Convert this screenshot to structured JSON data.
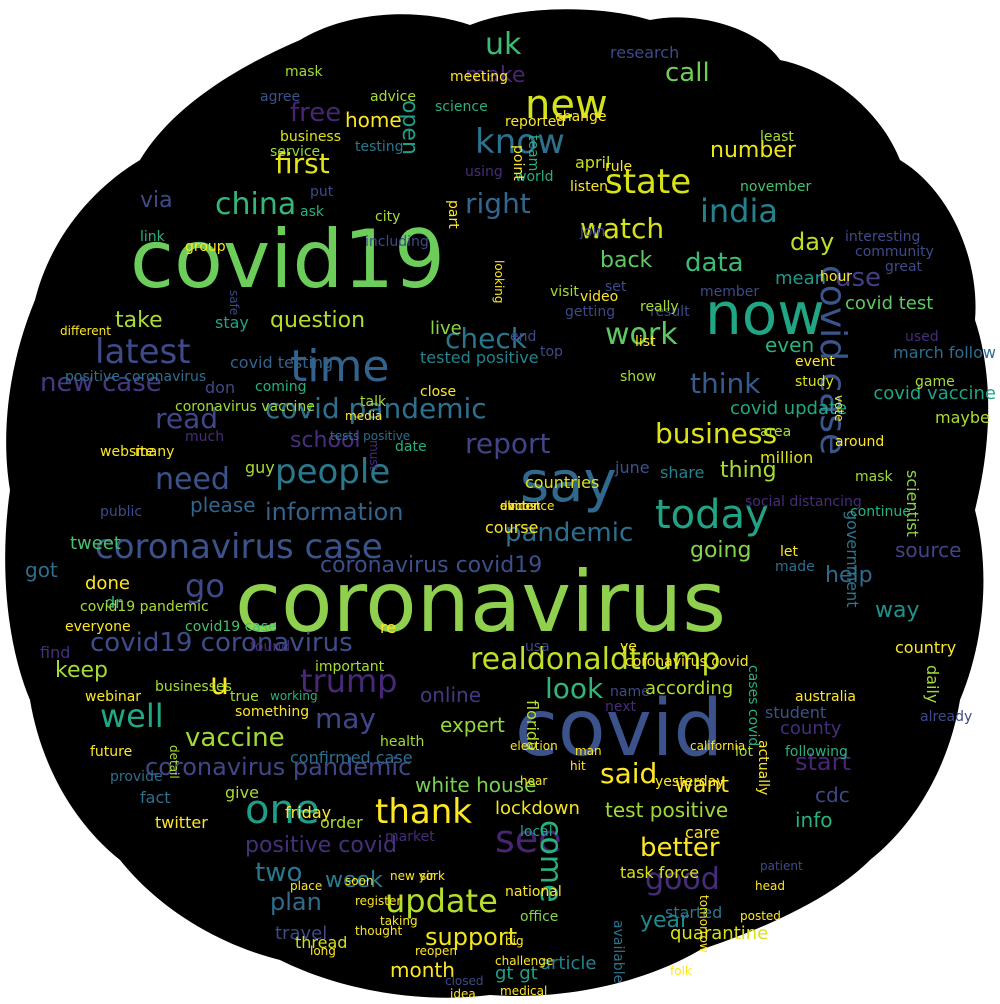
{
  "words": [
    {
      "text": "coronavirus",
      "color": "#8fd14f"
    },
    {
      "text": "covid19",
      "color": "#6ccd5a"
    },
    {
      "text": "covid",
      "color": "#3b528b"
    },
    {
      "text": "say",
      "color": "#31688e"
    },
    {
      "text": "now",
      "color": "#21a685"
    },
    {
      "text": "time",
      "color": "#33638d"
    },
    {
      "text": "new",
      "color": "#d2e21b"
    },
    {
      "text": "realdonaldtrump",
      "color": "#c2df23"
    },
    {
      "text": "people",
      "color": "#2a788e"
    },
    {
      "text": "one",
      "color": "#1f9e89"
    },
    {
      "text": "today",
      "color": "#20a386"
    },
    {
      "text": "covid case",
      "color": "#39558c"
    },
    {
      "text": "coronavirus case",
      "color": "#3b528b"
    },
    {
      "text": "update",
      "color": "#b5de2b"
    },
    {
      "text": "see",
      "color": "#482475"
    },
    {
      "text": "thank",
      "color": "#fde725"
    },
    {
      "text": "pandemic",
      "color": "#2e6f8e"
    },
    {
      "text": "latest",
      "color": "#3e4a89"
    },
    {
      "text": "covid pandemic",
      "color": "#2d708e"
    },
    {
      "text": "know",
      "color": "#2c728e"
    },
    {
      "text": "trump",
      "color": "#482878"
    },
    {
      "text": "state",
      "color": "#d8e219"
    },
    {
      "text": "india",
      "color": "#26818e"
    },
    {
      "text": "china",
      "color": "#35b779"
    },
    {
      "text": "need",
      "color": "#3b528b"
    },
    {
      "text": "good",
      "color": "#472c7a"
    },
    {
      "text": "read",
      "color": "#3f4788"
    },
    {
      "text": "business",
      "color": "#dde318"
    },
    {
      "text": "data",
      "color": "#3bbb75"
    },
    {
      "text": "look",
      "color": "#31b57b"
    },
    {
      "text": "well",
      "color": "#22a884"
    },
    {
      "text": "go",
      "color": "#3e4989"
    },
    {
      "text": "u",
      "color": "#fde725"
    },
    {
      "text": "may",
      "color": "#3f4889"
    },
    {
      "text": "first",
      "color": "#e5e419"
    },
    {
      "text": "work",
      "color": "#5ec962"
    },
    {
      "text": "check",
      "color": "#2a768e"
    },
    {
      "text": "think",
      "color": "#365c8d"
    },
    {
      "text": "report",
      "color": "#414487"
    },
    {
      "text": "said",
      "color": "#fde725"
    },
    {
      "text": "covid19 coronavirus",
      "color": "#3e4c8a"
    },
    {
      "text": "coronavirus covid19",
      "color": "#3c4f8a"
    },
    {
      "text": "coronavirus pandemic",
      "color": "#404688"
    },
    {
      "text": "information",
      "color": "#32648e"
    },
    {
      "text": "plan",
      "color": "#2f6c8e"
    },
    {
      "text": "support",
      "color": "#f1e51d"
    },
    {
      "text": "come",
      "color": "#2ab07f"
    },
    {
      "text": "watch",
      "color": "#d5e21a"
    },
    {
      "text": "new case",
      "color": "#443a83"
    },
    {
      "text": "positive covid",
      "color": "#46307e"
    },
    {
      "text": "better",
      "color": "#fde725"
    },
    {
      "text": "uk",
      "color": "#3ebc74"
    },
    {
      "text": "free",
      "color": "#482475"
    },
    {
      "text": "call",
      "color": "#6ece58"
    },
    {
      "text": "make",
      "color": "#482475"
    },
    {
      "text": "right",
      "color": "#31668e"
    },
    {
      "text": "question",
      "color": "#b5de2b"
    },
    {
      "text": "vaccine",
      "color": "#a0da39"
    },
    {
      "text": "use",
      "color": "#433e85"
    },
    {
      "text": "day",
      "color": "#bddf26"
    },
    {
      "text": "start",
      "color": "#482677"
    },
    {
      "text": "want",
      "color": "#fde725"
    },
    {
      "text": "two",
      "color": "#2a778e"
    },
    {
      "text": "week",
      "color": "#287c8e"
    },
    {
      "text": "keep",
      "color": "#a5db36"
    },
    {
      "text": "school",
      "color": "#472f7d"
    },
    {
      "text": "lockdown",
      "color": "#f4e61e"
    },
    {
      "text": "number",
      "color": "#ece51b"
    },
    {
      "text": "take",
      "color": "#a8db34"
    },
    {
      "text": "thing",
      "color": "#a8db34"
    },
    {
      "text": "going",
      "color": "#84d44b"
    },
    {
      "text": "help",
      "color": "#2f6b8e"
    },
    {
      "text": "way",
      "color": "#21918c"
    },
    {
      "text": "year",
      "color": "#23898e"
    },
    {
      "text": "open",
      "color": "#1f9e89"
    },
    {
      "text": "via",
      "color": "#3e4a89"
    },
    {
      "text": "back",
      "color": "#5ec962"
    },
    {
      "text": "home",
      "color": "#fde725"
    },
    {
      "text": "white house",
      "color": "#7ad151"
    },
    {
      "text": "test positive",
      "color": "#a0da39"
    },
    {
      "text": "please",
      "color": "#31668e"
    },
    {
      "text": "online",
      "color": "#443983"
    },
    {
      "text": "expert",
      "color": "#95d840"
    },
    {
      "text": "mean",
      "color": "#1f9a8a"
    },
    {
      "text": "even",
      "color": "#2cb17e"
    },
    {
      "text": "covid test",
      "color": "#5ec962"
    },
    {
      "text": "covid update",
      "color": "#22a785"
    },
    {
      "text": "covid vaccine",
      "color": "#20a486"
    },
    {
      "text": "march follow",
      "color": "#2e6e8e"
    },
    {
      "text": "county",
      "color": "#472d7b"
    },
    {
      "text": "source",
      "color": "#414487"
    },
    {
      "text": "maybe",
      "color": "#addc30"
    },
    {
      "text": "cdc",
      "color": "#3f4889"
    },
    {
      "text": "info",
      "color": "#2ab07f"
    },
    {
      "text": "quarantine",
      "color": "#d8e219"
    },
    {
      "text": "month",
      "color": "#fde725"
    },
    {
      "text": "article",
      "color": "#25838e"
    },
    {
      "text": "gt gt",
      "color": "#20a486"
    },
    {
      "text": "travel",
      "color": "#3e4a89"
    },
    {
      "text": "thread",
      "color": "#d0e11c"
    },
    {
      "text": "student",
      "color": "#3b528b"
    },
    {
      "text": "according",
      "color": "#b5de2b"
    },
    {
      "text": "million",
      "color": "#dde318"
    },
    {
      "text": "daily",
      "color": "#a2da37"
    },
    {
      "text": "country",
      "color": "#fde725"
    },
    {
      "text": "government",
      "color": "#2a778e"
    },
    {
      "text": "scientist",
      "color": "#8ed645"
    },
    {
      "text": "florida",
      "color": "#b5de2b"
    },
    {
      "text": "live",
      "color": "#8bd646"
    },
    {
      "text": "tested positive",
      "color": "#25848e"
    },
    {
      "text": "covid testing",
      "color": "#33638d"
    },
    {
      "text": "stay",
      "color": "#20a486"
    },
    {
      "text": "don",
      "color": "#3e4a89"
    },
    {
      "text": "guy",
      "color": "#a8db34"
    },
    {
      "text": "done",
      "color": "#fde725"
    },
    {
      "text": "got",
      "color": "#2e6e8e"
    },
    {
      "text": "tweet",
      "color": "#48c16e"
    },
    {
      "text": "dr",
      "color": "#35b779"
    },
    {
      "text": "find",
      "color": "#46307e"
    },
    {
      "text": "re",
      "color": "#fde725"
    },
    {
      "text": "confirmed case",
      "color": "#2e6e8e"
    },
    {
      "text": "give",
      "color": "#a8db34"
    },
    {
      "text": "fact",
      "color": "#2b748e"
    },
    {
      "text": "twitter",
      "color": "#fde725"
    },
    {
      "text": "friday",
      "color": "#fde725"
    },
    {
      "text": "order",
      "color": "#addc30"
    },
    {
      "text": "market",
      "color": "#472c7a"
    },
    {
      "text": "local",
      "color": "#20a386"
    },
    {
      "text": "care",
      "color": "#fde725"
    },
    {
      "text": "task force",
      "color": "#d8e219"
    },
    {
      "text": "national",
      "color": "#fde725"
    },
    {
      "text": "started",
      "color": "#2a768e"
    },
    {
      "text": "office",
      "color": "#86d549"
    },
    {
      "text": "available",
      "color": "#2c728e"
    },
    {
      "text": "course",
      "color": "#fde725"
    },
    {
      "text": "countries",
      "color": "#dde318"
    },
    {
      "text": "june",
      "color": "#3b528b"
    },
    {
      "text": "share",
      "color": "#26828e"
    },
    {
      "text": "research",
      "color": "#3e4a89"
    },
    {
      "text": "mask",
      "color": "#a0da39"
    },
    {
      "text": "agree",
      "color": "#3b528b"
    },
    {
      "text": "business",
      "color": "#dde318"
    },
    {
      "text": "service",
      "color": "#95d840"
    },
    {
      "text": "testing",
      "color": "#2a778e"
    },
    {
      "text": "april",
      "color": "#c8e020"
    },
    {
      "text": "world",
      "color": "#2ab07f"
    },
    {
      "text": "november",
      "color": "#48c16e"
    },
    {
      "text": "least",
      "color": "#a8db34"
    },
    {
      "text": "study",
      "color": "#dde318"
    },
    {
      "text": "interesting",
      "color": "#3e4a89"
    },
    {
      "text": "community",
      "color": "#3e4a89"
    },
    {
      "text": "great",
      "color": "#3e4a89"
    },
    {
      "text": "hour",
      "color": "#fde725"
    },
    {
      "text": "member",
      "color": "#3e4a89"
    },
    {
      "text": "result",
      "color": "#3e4a89"
    },
    {
      "text": "set",
      "color": "#3e4a89"
    },
    {
      "text": "visit",
      "color": "#a8db34"
    },
    {
      "text": "including",
      "color": "#3e4a89"
    },
    {
      "text": "city",
      "color": "#a8db34"
    },
    {
      "text": "ask",
      "color": "#2ab07f"
    },
    {
      "text": "put",
      "color": "#3e4a89"
    },
    {
      "text": "link",
      "color": "#2ab07f"
    },
    {
      "text": "group",
      "color": "#fde725"
    },
    {
      "text": "safe",
      "color": "#3e4a89"
    },
    {
      "text": "different",
      "color": "#fde725"
    },
    {
      "text": "positive coronavirus",
      "color": "#2e6e8e"
    },
    {
      "text": "coronavirus vaccine",
      "color": "#a0da39"
    },
    {
      "text": "much",
      "color": "#472c7a"
    },
    {
      "text": "coming",
      "color": "#2ab07f"
    },
    {
      "text": "talk",
      "color": "#a8db34"
    },
    {
      "text": "many",
      "color": "#fde725"
    },
    {
      "text": "true",
      "color": "#a8db34"
    },
    {
      "text": "businesses",
      "color": "#a8db34"
    },
    {
      "text": "webinar",
      "color": "#fde725"
    },
    {
      "text": "covid19 case",
      "color": "#48c16e"
    },
    {
      "text": "covid19 pandemic",
      "color": "#a8db34"
    },
    {
      "text": "everyone",
      "color": "#fde725"
    },
    {
      "text": "important",
      "color": "#a8db34"
    },
    {
      "text": "found",
      "color": "#472c7a"
    },
    {
      "text": "working",
      "color": "#2ab07f"
    },
    {
      "text": "something",
      "color": "#fde725"
    },
    {
      "text": "health",
      "color": "#a8db34"
    },
    {
      "text": "social distancing",
      "color": "#472c7a"
    },
    {
      "text": "close",
      "color": "#fde725"
    },
    {
      "text": "area",
      "color": "#a8db34"
    },
    {
      "text": "event",
      "color": "#fde725"
    },
    {
      "text": "vote",
      "color": "#fde725"
    },
    {
      "text": "around",
      "color": "#fde725"
    },
    {
      "text": "continue",
      "color": "#2ab07f"
    },
    {
      "text": "mask",
      "color": "#a0da39"
    },
    {
      "text": "let",
      "color": "#fde725"
    },
    {
      "text": "made",
      "color": "#2e6e8e"
    },
    {
      "text": "must",
      "color": "#472c7a"
    },
    {
      "text": "date",
      "color": "#2ab07f"
    },
    {
      "text": "ye",
      "color": "#fde725"
    },
    {
      "text": "usa",
      "color": "#3e4a89"
    },
    {
      "text": "next",
      "color": "#472c7a"
    },
    {
      "text": "name",
      "color": "#3e4a89"
    },
    {
      "text": "actually",
      "color": "#fde725"
    },
    {
      "text": "following",
      "color": "#2ab07f"
    },
    {
      "text": "website",
      "color": "#fde725"
    },
    {
      "text": "public",
      "color": "#3e4a89"
    },
    {
      "text": "provide",
      "color": "#2e6e8e"
    },
    {
      "text": "future",
      "color": "#fde725"
    },
    {
      "text": "detail",
      "color": "#a8db34"
    },
    {
      "text": "tests positive",
      "color": "#2e6e8e"
    },
    {
      "text": "media",
      "color": "#fde725"
    },
    {
      "text": "advice",
      "color": "#a8db34"
    },
    {
      "text": "science",
      "color": "#2ab07f"
    },
    {
      "text": "meeting",
      "color": "#fde725"
    },
    {
      "text": "reported",
      "color": "#fde725"
    },
    {
      "text": "point",
      "color": "#fde725"
    },
    {
      "text": "change",
      "color": "#fde725"
    },
    {
      "text": "team",
      "color": "#2ab07f"
    },
    {
      "text": "listen",
      "color": "#fde725"
    },
    {
      "text": "using",
      "color": "#472c7a"
    },
    {
      "text": "part",
      "color": "#fde725"
    },
    {
      "text": "join",
      "color": "#3e4a89"
    },
    {
      "text": "rule",
      "color": "#fde725"
    },
    {
      "text": "video",
      "color": "#fde725"
    },
    {
      "text": "list",
      "color": "#fde725"
    },
    {
      "text": "really",
      "color": "#a8db34"
    },
    {
      "text": "show",
      "color": "#a8db34"
    },
    {
      "text": "end",
      "color": "#3e4a89"
    },
    {
      "text": "top",
      "color": "#3e4a89"
    },
    {
      "text": "getting",
      "color": "#3e4a89"
    },
    {
      "text": "looking",
      "color": "#fde725"
    },
    {
      "text": "coronavirus covid",
      "color": "#fde725"
    },
    {
      "text": "cases covid",
      "color": "#2ab07f"
    },
    {
      "text": "already",
      "color": "#3e4a89"
    },
    {
      "text": "game",
      "color": "#a8db34"
    },
    {
      "text": "used",
      "color": "#472c7a"
    },
    {
      "text": "australia",
      "color": "#fde725"
    },
    {
      "text": "lot",
      "color": "#a8db34"
    },
    {
      "text": "hit",
      "color": "#fde725"
    },
    {
      "text": "yesterday",
      "color": "#fde725"
    },
    {
      "text": "california",
      "color": "#fde725"
    },
    {
      "text": "man",
      "color": "#fde725"
    },
    {
      "text": "election",
      "color": "#fde725"
    },
    {
      "text": "hear",
      "color": "#fde725"
    },
    {
      "text": "new york",
      "color": "#fde725"
    },
    {
      "text": "soon",
      "color": "#fde725"
    },
    {
      "text": "place",
      "color": "#fde725"
    },
    {
      "text": "register",
      "color": "#fde725"
    },
    {
      "text": "sir",
      "color": "#fde725"
    },
    {
      "text": "taking",
      "color": "#fde725"
    },
    {
      "text": "thought",
      "color": "#fde725"
    },
    {
      "text": "reopen",
      "color": "#fde725"
    },
    {
      "text": "long",
      "color": "#fde725"
    },
    {
      "text": "big",
      "color": "#fde725"
    },
    {
      "text": "folk",
      "color": "#fde725"
    },
    {
      "text": "tomorrow",
      "color": "#fde725"
    },
    {
      "text": "posted",
      "color": "#fde725"
    },
    {
      "text": "head",
      "color": "#fde725"
    },
    {
      "text": "patient",
      "color": "#3e4a89"
    },
    {
      "text": "closed",
      "color": "#3e4a89"
    },
    {
      "text": "idea",
      "color": "#fde725"
    },
    {
      "text": "medical",
      "color": "#fde725"
    },
    {
      "text": "challenge",
      "color": "#fde725"
    },
    {
      "text": "doctor",
      "color": "#fde725"
    },
    {
      "text": "evidence",
      "color": "#fde725"
    },
    {
      "text": "almost",
      "color": "#fde725"
    },
    {
      "text": "ok",
      "color": "#fde725"
    }
  ]
}
